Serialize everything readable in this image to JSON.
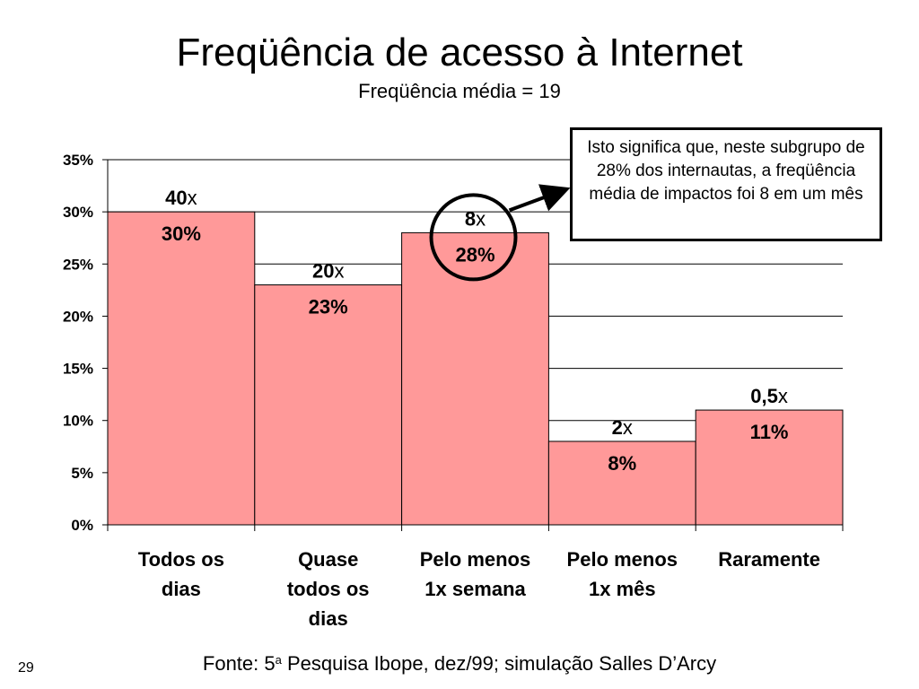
{
  "slide": {
    "title": "Freqüência de acesso à Internet",
    "subtitle": "Freqüência média = 19",
    "callout": "Isto significa que, neste subgrupo de 28% dos internautas, a freqüência média de impactos foi 8 em um mês",
    "source_prefix": "Fonte: 5",
    "source_sup": "a",
    "source_suffix": " Pesquisa Ibope, dez/99; simulação Salles D’Arcy",
    "page_number": "29"
  },
  "chart_data": {
    "type": "bar",
    "title": "Freqüência de acesso à Internet",
    "subtitle": "Freqüência média = 19",
    "categories": [
      [
        "Todos os",
        "dias"
      ],
      [
        "Quase",
        "todos os",
        "dias"
      ],
      [
        "Pelo menos",
        "1x semana"
      ],
      [
        "Pelo menos",
        "1x mês"
      ],
      [
        "Raramente"
      ]
    ],
    "values": [
      30,
      23,
      28,
      8,
      11
    ],
    "value_labels": [
      "30%",
      "23%",
      "28%",
      "8%",
      "11%"
    ],
    "frequency_numbers": [
      "40",
      "20",
      "8",
      "2",
      "0,5"
    ],
    "frequency_suffix": "x",
    "yticks": [
      "0%",
      "5%",
      "10%",
      "15%",
      "20%",
      "25%",
      "30%",
      "35%"
    ],
    "ylim": [
      0,
      35
    ],
    "grid": true,
    "highlighted_index": 2,
    "colors": {
      "bar_fill": "#ff9999",
      "bar_stroke": "#000000",
      "grid": "#000000"
    }
  }
}
